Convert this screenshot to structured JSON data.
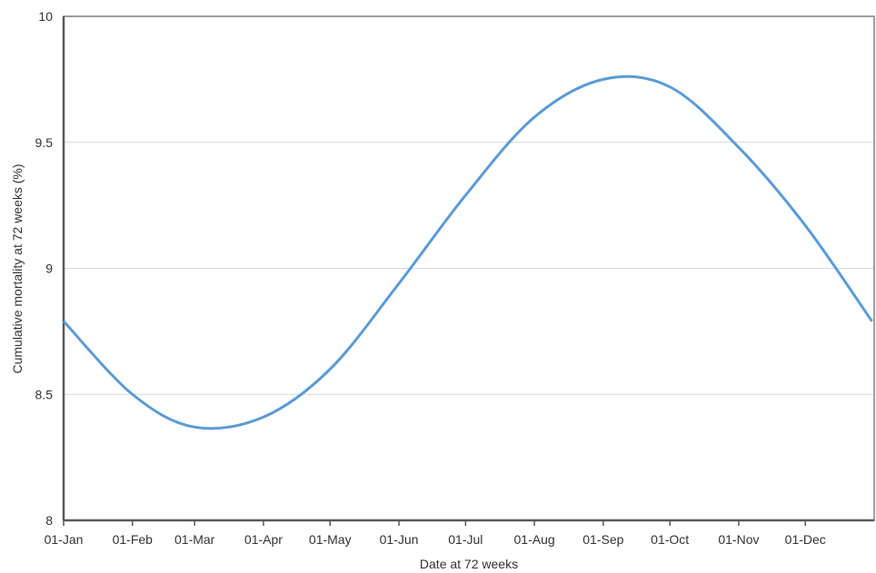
{
  "chart_data": {
    "type": "line",
    "title": "",
    "xlabel": "Date at 72 weeks",
    "ylabel": "Cumulative mortality at 72 weeks (%)",
    "x_tick_labels": [
      "01-Jan",
      "01-Feb",
      "01-Mar",
      "01-Apr",
      "01-May",
      "01-Jun",
      "01-Jul",
      "01-Aug",
      "01-Sep",
      "01-Oct",
      "01-Nov",
      "01-Dec"
    ],
    "y_tick_labels": [
      "8",
      "8.5",
      "9",
      "9.5",
      "10"
    ],
    "ylim": [
      8,
      10
    ],
    "y_ticks": [
      8,
      8.5,
      9,
      9.5,
      10
    ],
    "grid": "horizontal",
    "legend": "none",
    "line_color": "#5b9bd5",
    "series": [
      {
        "x": [
          "01-Jan",
          "01-Feb",
          "01-Mar",
          "01-Apr",
          "01-May",
          "01-Jun",
          "01-Jul",
          "01-Aug",
          "01-Sep",
          "01-Oct",
          "01-Nov",
          "01-Dec",
          "31-Dec"
        ],
        "values": [
          8.79,
          8.5,
          8.37,
          8.41,
          8.6,
          8.94,
          9.29,
          9.6,
          9.75,
          9.72,
          9.48,
          9.17,
          8.79
        ]
      }
    ]
  }
}
